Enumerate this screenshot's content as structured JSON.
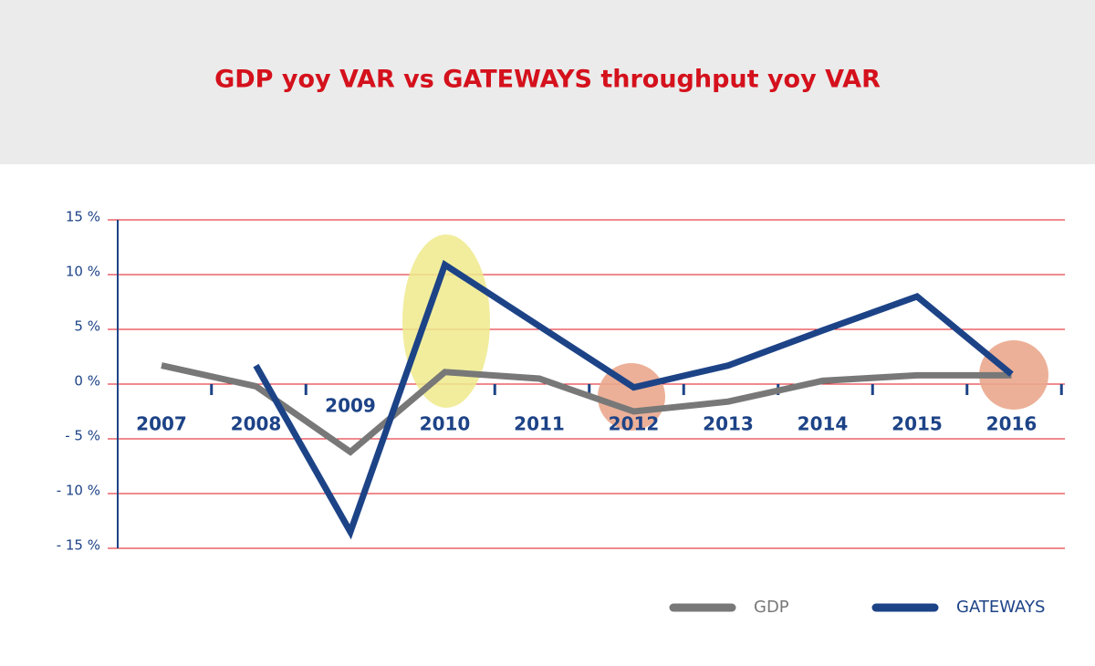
{
  "chart_data": {
    "type": "line",
    "title": "GDP yoy VAR vs GATEWAYS throughput yoy VAR",
    "categories": [
      "2007",
      "2008",
      "2009",
      "2010",
      "2011",
      "2012",
      "2013",
      "2014",
      "2015",
      "2016"
    ],
    "series": [
      {
        "name": "GDP",
        "color": "#787878",
        "values": [
          1.7,
          -0.2,
          -6.2,
          1.1,
          0.5,
          -2.5,
          -1.6,
          0.3,
          0.8,
          0.8
        ]
      },
      {
        "name": "GATEWAYS",
        "color": "#1d4387",
        "values": [
          null,
          1.7,
          -13.5,
          10.9,
          5.3,
          -0.3,
          1.7,
          4.9,
          8,
          0.9
        ]
      }
    ],
    "ylim": [
      -15,
      15
    ],
    "yticks": [
      {
        "value": -15,
        "label": "- 15 %"
      },
      {
        "value": -10,
        "label": "- 10 %"
      },
      {
        "value": -5,
        "label": "- 5 %"
      },
      {
        "value": 0,
        "label": "0 %"
      },
      {
        "value": 5,
        "label": "5 %"
      },
      {
        "value": 10,
        "label": "10 %"
      },
      {
        "value": 15,
        "label": "15 %"
      }
    ],
    "grid": true
  }
}
